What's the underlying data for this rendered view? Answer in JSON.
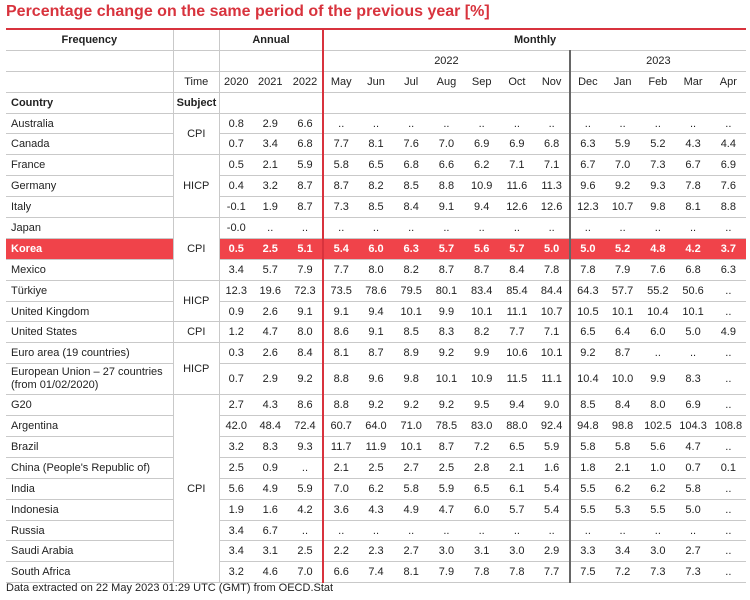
{
  "title": "Percentage change on the same period of the previous year [%]",
  "footer": "Data extracted on 22 May 2023 01:29 UTC (GMT) from OECD.Stat",
  "headers": {
    "frequency": "Frequency",
    "annual": "Annual",
    "monthly": "Monthly",
    "year2022": "2022",
    "year2023": "2023",
    "time": "Time",
    "country": "Country",
    "subject": "Subject",
    "periods": [
      "2020",
      "2021",
      "2022",
      "May",
      "Jun",
      "Jul",
      "Aug",
      "Sep",
      "Oct",
      "Nov",
      "Dec",
      "Jan",
      "Feb",
      "Mar",
      "Apr"
    ]
  },
  "subjects": {
    "g1": "CPI",
    "g2": "HICP",
    "g3": "CPI",
    "g4": "HICP",
    "g5": "CPI",
    "g6": "HICP",
    "g7": "CPI"
  },
  "rows": [
    {
      "country": "Australia",
      "values": [
        "0.8",
        "2.9",
        "6.6",
        "..",
        "..",
        "..",
        "..",
        "..",
        "..",
        "..",
        "..",
        "..",
        "..",
        "..",
        ".."
      ]
    },
    {
      "country": "Canada",
      "values": [
        "0.7",
        "3.4",
        "6.8",
        "7.7",
        "8.1",
        "7.6",
        "7.0",
        "6.9",
        "6.9",
        "6.8",
        "6.3",
        "5.9",
        "5.2",
        "4.3",
        "4.4"
      ]
    },
    {
      "country": "France",
      "values": [
        "0.5",
        "2.1",
        "5.9",
        "5.8",
        "6.5",
        "6.8",
        "6.6",
        "6.2",
        "7.1",
        "7.1",
        "6.7",
        "7.0",
        "7.3",
        "6.7",
        "6.9"
      ]
    },
    {
      "country": "Germany",
      "values": [
        "0.4",
        "3.2",
        "8.7",
        "8.7",
        "8.2",
        "8.5",
        "8.8",
        "10.9",
        "11.6",
        "11.3",
        "9.6",
        "9.2",
        "9.3",
        "7.8",
        "7.6"
      ]
    },
    {
      "country": "Italy",
      "values": [
        "-0.1",
        "1.9",
        "8.7",
        "7.3",
        "8.5",
        "8.4",
        "9.1",
        "9.4",
        "12.6",
        "12.6",
        "12.3",
        "10.7",
        "9.8",
        "8.1",
        "8.8"
      ]
    },
    {
      "country": "Japan",
      "values": [
        "-0.0",
        "..",
        "..",
        "..",
        "..",
        "..",
        "..",
        "..",
        "..",
        "..",
        "..",
        "..",
        "..",
        "..",
        ".."
      ]
    },
    {
      "country": "Korea",
      "values": [
        "0.5",
        "2.5",
        "5.1",
        "5.4",
        "6.0",
        "6.3",
        "5.7",
        "5.6",
        "5.7",
        "5.0",
        "5.0",
        "5.2",
        "4.8",
        "4.2",
        "3.7"
      ]
    },
    {
      "country": "Mexico",
      "values": [
        "3.4",
        "5.7",
        "7.9",
        "7.7",
        "8.0",
        "8.2",
        "8.7",
        "8.7",
        "8.4",
        "7.8",
        "7.8",
        "7.9",
        "7.6",
        "6.8",
        "6.3"
      ]
    },
    {
      "country": "Türkiye",
      "values": [
        "12.3",
        "19.6",
        "72.3",
        "73.5",
        "78.6",
        "79.5",
        "80.1",
        "83.4",
        "85.4",
        "84.4",
        "64.3",
        "57.7",
        "55.2",
        "50.6",
        ".."
      ]
    },
    {
      "country": "United Kingdom",
      "values": [
        "0.9",
        "2.6",
        "9.1",
        "9.1",
        "9.4",
        "10.1",
        "9.9",
        "10.1",
        "11.1",
        "10.7",
        "10.5",
        "10.1",
        "10.4",
        "10.1",
        ".."
      ]
    },
    {
      "country": "United States",
      "values": [
        "1.2",
        "4.7",
        "8.0",
        "8.6",
        "9.1",
        "8.5",
        "8.3",
        "8.2",
        "7.7",
        "7.1",
        "6.5",
        "6.4",
        "6.0",
        "5.0",
        "4.9"
      ]
    },
    {
      "country": "Euro area (19 countries)",
      "values": [
        "0.3",
        "2.6",
        "8.4",
        "8.1",
        "8.7",
        "8.9",
        "9.2",
        "9.9",
        "10.6",
        "10.1",
        "9.2",
        "8.7",
        "..",
        "..",
        ".."
      ]
    },
    {
      "country": "European Union – 27 countries (from 01/02/2020)",
      "values": [
        "0.7",
        "2.9",
        "9.2",
        "8.8",
        "9.6",
        "9.8",
        "10.1",
        "10.9",
        "11.5",
        "11.1",
        "10.4",
        "10.0",
        "9.9",
        "8.3",
        ".."
      ]
    },
    {
      "country": "G20",
      "values": [
        "2.7",
        "4.3",
        "8.6",
        "8.8",
        "9.2",
        "9.2",
        "9.2",
        "9.5",
        "9.4",
        "9.0",
        "8.5",
        "8.4",
        "8.0",
        "6.9",
        ".."
      ]
    },
    {
      "country": "Argentina",
      "values": [
        "42.0",
        "48.4",
        "72.4",
        "60.7",
        "64.0",
        "71.0",
        "78.5",
        "83.0",
        "88.0",
        "92.4",
        "94.8",
        "98.8",
        "102.5",
        "104.3",
        "108.8"
      ]
    },
    {
      "country": "Brazil",
      "values": [
        "3.2",
        "8.3",
        "9.3",
        "11.7",
        "11.9",
        "10.1",
        "8.7",
        "7.2",
        "6.5",
        "5.9",
        "5.8",
        "5.8",
        "5.6",
        "4.7",
        ".."
      ]
    },
    {
      "country": "China (People's Republic of)",
      "values": [
        "2.5",
        "0.9",
        "..",
        "2.1",
        "2.5",
        "2.7",
        "2.5",
        "2.8",
        "2.1",
        "1.6",
        "1.8",
        "2.1",
        "1.0",
        "0.7",
        "0.1"
      ]
    },
    {
      "country": "India",
      "values": [
        "5.6",
        "4.9",
        "5.9",
        "7.0",
        "6.2",
        "5.8",
        "5.9",
        "6.5",
        "6.1",
        "5.4",
        "5.5",
        "6.2",
        "6.2",
        "5.8",
        ".."
      ]
    },
    {
      "country": "Indonesia",
      "values": [
        "1.9",
        "1.6",
        "4.2",
        "3.6",
        "4.3",
        "4.9",
        "4.7",
        "6.0",
        "5.7",
        "5.4",
        "5.5",
        "5.3",
        "5.5",
        "5.0",
        ".."
      ]
    },
    {
      "country": "Russia",
      "values": [
        "3.4",
        "6.7",
        "..",
        "..",
        "..",
        "..",
        "..",
        "..",
        "..",
        "..",
        "..",
        "..",
        "..",
        "..",
        ".."
      ]
    },
    {
      "country": "Saudi Arabia",
      "values": [
        "3.4",
        "3.1",
        "2.5",
        "2.2",
        "2.3",
        "2.7",
        "3.0",
        "3.1",
        "3.0",
        "2.9",
        "3.3",
        "3.4",
        "3.0",
        "2.7",
        ".."
      ]
    },
    {
      "country": "South Africa",
      "values": [
        "3.2",
        "4.6",
        "7.0",
        "6.6",
        "7.4",
        "8.1",
        "7.9",
        "7.8",
        "7.8",
        "7.7",
        "7.5",
        "7.2",
        "7.3",
        "7.3",
        ".."
      ]
    }
  ]
}
